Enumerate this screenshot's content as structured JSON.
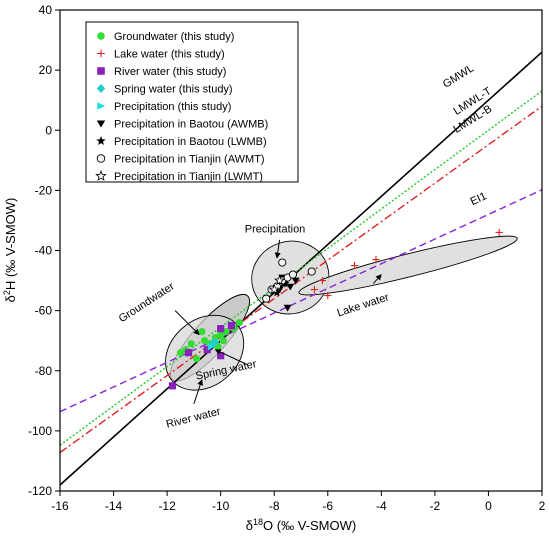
{
  "chart_data": {
    "type": "scatter",
    "xlabel": "δ18O (‰ V-SMOW)",
    "xlabel_parts": {
      "sym": "δ",
      "sup": "18",
      "rest": "O (‰ V-SMOW)"
    },
    "ylabel": "δ2H (‰ V-SMOW)",
    "ylabel_parts": {
      "sym": "δ",
      "sup": "2",
      "rest": "H (‰ V-SMOW)"
    },
    "xlim": [
      -16,
      2
    ],
    "ylim": [
      -120,
      40
    ],
    "x_ticks": [
      -16,
      -14,
      -12,
      -10,
      -8,
      -6,
      -4,
      -2,
      0,
      2
    ],
    "y_ticks": [
      -120,
      -100,
      -80,
      -60,
      -40,
      -20,
      0,
      20,
      40
    ],
    "grid": false,
    "legend_position": "top-left",
    "lines": [
      {
        "name": "GMWL",
        "slope": 8,
        "intercept": 10,
        "color": "#000000",
        "style": "solid"
      },
      {
        "name": "LMWL-T",
        "slope": 6.55,
        "intercept": 0,
        "color": "#22cc22",
        "style": "dotted"
      },
      {
        "name": "LMWL-B",
        "slope": 6.4,
        "intercept": -4.8,
        "color": "#dd2222",
        "style": "dashdot"
      },
      {
        "name": "EI1",
        "slope": 4.1,
        "intercept": -28,
        "color": "#8822dd",
        "style": "dashed"
      }
    ],
    "series": [
      {
        "name": "Groundwater (this study)",
        "marker": "circle",
        "color": "#33dd33",
        "points": [
          [
            -11.3,
            -73
          ],
          [
            -11.1,
            -71
          ],
          [
            -10.9,
            -76
          ],
          [
            -10.6,
            -70
          ],
          [
            -10.4,
            -71
          ],
          [
            -10.2,
            -69
          ],
          [
            -10.0,
            -68
          ],
          [
            -9.8,
            -67
          ],
          [
            -9.5,
            -66
          ],
          [
            -9.3,
            -64
          ],
          [
            -10.7,
            -67
          ],
          [
            -10.1,
            -72
          ],
          [
            -11.5,
            -74
          ],
          [
            -9.9,
            -70
          ]
        ]
      },
      {
        "name": "Lake water (this study)",
        "marker": "plus",
        "color": "#dd2222",
        "points": [
          [
            0.4,
            -34
          ],
          [
            -4.2,
            -43
          ],
          [
            -5.0,
            -45
          ],
          [
            -6.2,
            -50
          ],
          [
            -6.5,
            -53
          ],
          [
            -6.0,
            -55
          ]
        ]
      },
      {
        "name": "River water (this study)",
        "marker": "square",
        "color": "#8822bb",
        "points": [
          [
            -11.8,
            -85
          ],
          [
            -11.2,
            -74
          ],
          [
            -10.5,
            -73
          ],
          [
            -10.0,
            -75
          ],
          [
            -10.0,
            -66
          ],
          [
            -9.6,
            -65
          ]
        ]
      },
      {
        "name": "Spring water (this study)",
        "marker": "diamond",
        "color": "#22cccc",
        "points": [
          [
            -10.3,
            -71
          ],
          [
            -10.2,
            -70.5
          ]
        ]
      },
      {
        "name": "Precipitation (this study)",
        "marker": "triangle-right",
        "color": "#22dddd",
        "points": [
          [
            -10.35,
            -72
          ]
        ]
      },
      {
        "name": "Precipitation in Baotou (AWMB)",
        "marker": "triangle-down",
        "color": "#000000",
        "points": [
          [
            -7.8,
            -53
          ],
          [
            -7.6,
            -51
          ],
          [
            -7.7,
            -49
          ],
          [
            -7.5,
            -59
          ],
          [
            -7.4,
            -52
          ],
          [
            -7.2,
            -50
          ]
        ]
      },
      {
        "name": "Precipitation in Baotou (LWMB)",
        "marker": "star",
        "color": "#000000",
        "points": [
          [
            -7.9,
            -54
          ],
          [
            -7.6,
            -51
          ]
        ]
      },
      {
        "name": "Precipitation in Tianjin (AWMT)",
        "marker": "open-circle",
        "color": "#000000",
        "points": [
          [
            -8.3,
            -56
          ],
          [
            -8.1,
            -53
          ],
          [
            -7.9,
            -52
          ],
          [
            -7.7,
            -50
          ],
          [
            -7.5,
            -49
          ],
          [
            -7.3,
            -48
          ],
          [
            -7.7,
            -44
          ],
          [
            -6.6,
            -47
          ]
        ]
      },
      {
        "name": "Precipitation in Tianjin (LWMT)",
        "marker": "open-star",
        "color": "#000000",
        "points": [
          [
            -8.0,
            -53
          ],
          [
            -7.8,
            -50
          ]
        ]
      }
    ],
    "annotations": [
      {
        "text": "GMWL",
        "x": -1.6,
        "y": 14
      },
      {
        "text": "LMWL-T",
        "x": -1.2,
        "y": 5
      },
      {
        "text": "LMWL-B",
        "x": -1.2,
        "y": -1
      },
      {
        "text": "EI1",
        "x": -0.6,
        "y": -25
      },
      {
        "text": "Precipitation",
        "x": -9.1,
        "y": -34
      },
      {
        "text": "Lake water",
        "x": -5.6,
        "y": -62
      },
      {
        "text": "Groundwater",
        "x": -13.7,
        "y": -64
      },
      {
        "text": "Spring water",
        "x": -10.9,
        "y": -83
      },
      {
        "text": "River water",
        "x": -12.0,
        "y": -99
      }
    ],
    "regions": [
      {
        "name": "precipitation-region"
      },
      {
        "name": "lake-water-region"
      },
      {
        "name": "groundwater-region"
      },
      {
        "name": "river-water-region"
      }
    ]
  }
}
